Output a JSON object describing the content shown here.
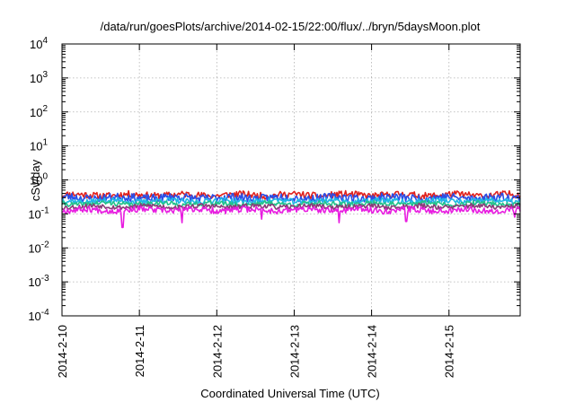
{
  "chart_data": {
    "type": "line",
    "title": "/data/run/goesPlots/archive/2014-02-15/22:00/flux/../bryn/5daysMoon.plot",
    "xlabel": "Coordinated Universal Time (UTC)",
    "ylabel": "cSv/day",
    "yscale": "log",
    "ylim_exp": [
      -4,
      4
    ],
    "y_ticks": [
      {
        "base": "10",
        "exp": "-4"
      },
      {
        "base": "10",
        "exp": "-3"
      },
      {
        "base": "10",
        "exp": "-2"
      },
      {
        "base": "10",
        "exp": "-1"
      },
      {
        "base": "10",
        "exp": "0"
      },
      {
        "base": "10",
        "exp": "1"
      },
      {
        "base": "10",
        "exp": "2"
      },
      {
        "base": "10",
        "exp": "3"
      },
      {
        "base": "10",
        "exp": "4"
      }
    ],
    "x_range_days": [
      0,
      5.92
    ],
    "x_ticks": [
      {
        "label": "2014-2-10",
        "day": 0
      },
      {
        "label": "2014-2-11",
        "day": 1
      },
      {
        "label": "2014-2-12",
        "day": 2
      },
      {
        "label": "2014-2-13",
        "day": 3
      },
      {
        "label": "2014-2-14",
        "day": 4
      },
      {
        "label": "2014-2-15",
        "day": 5
      }
    ],
    "grid": true,
    "series": [
      {
        "color": "#e0201c",
        "level": 0.36,
        "amp": 0.1,
        "seed": 11,
        "dips": []
      },
      {
        "color": "#2a4fe8",
        "level": 0.3,
        "amp": 0.12,
        "seed": 23,
        "dips": []
      },
      {
        "color": "#1fb8e6",
        "level": 0.24,
        "amp": 0.08,
        "seed": 37,
        "dips": []
      },
      {
        "color": "#22c28a",
        "level": 0.2,
        "amp": 0.07,
        "seed": 41,
        "dips": []
      },
      {
        "color": "#8a3a78",
        "level": 0.165,
        "amp": 0.07,
        "seed": 53,
        "dips": []
      },
      {
        "color": "#e81ce0",
        "level": 0.13,
        "amp": 0.09,
        "seed": 67,
        "dips": [
          [
            0.78,
            0.04
          ],
          [
            1.55,
            0.055
          ],
          [
            2.58,
            0.07
          ],
          [
            3.58,
            0.055
          ],
          [
            4.45,
            0.06
          ],
          [
            5.85,
            0.08
          ]
        ]
      }
    ]
  }
}
